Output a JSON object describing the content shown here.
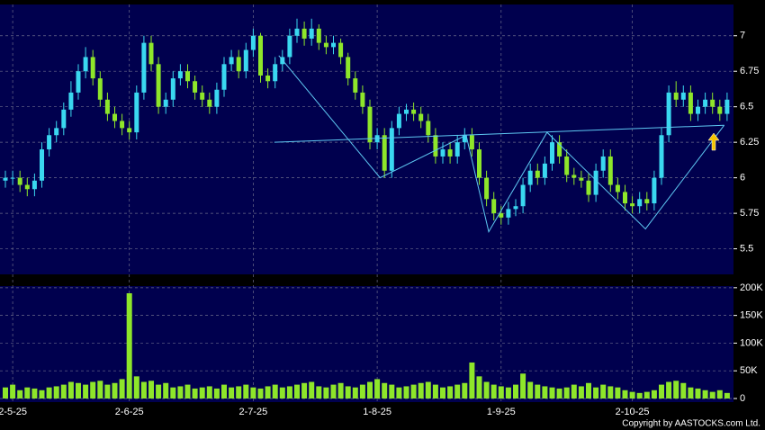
{
  "chart_data": [
    {
      "type": "candlestick",
      "categories": [
        null,
        "2-5-25",
        null,
        null,
        null,
        null,
        null,
        null,
        null,
        null,
        null,
        null,
        null,
        null,
        null,
        null,
        null,
        "2-6-25",
        null,
        null,
        null,
        null,
        null,
        null,
        null,
        null,
        null,
        null,
        null,
        null,
        null,
        null,
        null,
        null,
        "2-7-25",
        null,
        null,
        null,
        null,
        null,
        null,
        null,
        null,
        null,
        null,
        null,
        null,
        null,
        null,
        null,
        null,
        "1-8-25",
        null,
        null,
        null,
        null,
        null,
        null,
        null,
        null,
        null,
        null,
        null,
        null,
        null,
        null,
        null,
        null,
        "1-9-25",
        null,
        null,
        null,
        null,
        null,
        null,
        null,
        null,
        null,
        null,
        null,
        null,
        null,
        null,
        null,
        null,
        null,
        "2-10-25",
        null,
        null,
        null,
        null,
        null,
        null,
        null,
        null,
        null,
        null,
        null,
        null,
        null
      ],
      "open": [
        5.98,
        6.0,
        6.0,
        5.95,
        5.92,
        5.98,
        6.2,
        6.3,
        6.35,
        6.48,
        6.6,
        6.75,
        6.85,
        6.7,
        6.55,
        6.45,
        6.4,
        6.35,
        6.32,
        6.6,
        6.95,
        6.8,
        6.5,
        6.55,
        6.7,
        6.75,
        6.68,
        6.6,
        6.55,
        6.5,
        6.62,
        6.8,
        6.85,
        6.75,
        6.9,
        7.0,
        6.72,
        6.68,
        6.8,
        6.85,
        7.0,
        7.05,
        6.98,
        7.05,
        6.95,
        6.92,
        6.95,
        6.85,
        6.7,
        6.6,
        6.5,
        6.25,
        6.3,
        6.05,
        6.35,
        6.45,
        6.48,
        6.45,
        6.4,
        6.3,
        6.15,
        6.2,
        6.15,
        6.25,
        6.3,
        6.2,
        6.0,
        5.85,
        5.75,
        5.72,
        5.78,
        5.8,
        5.95,
        6.05,
        6.0,
        6.1,
        6.25,
        6.15,
        6.02,
        6.0,
        5.98,
        5.88,
        6.05,
        6.15,
        5.95,
        5.9,
        5.82,
        5.8,
        5.85,
        5.82,
        6.0,
        6.3,
        6.6,
        6.55,
        6.6,
        6.45,
        6.5,
        6.55,
        6.5,
        6.45
      ],
      "high": [
        6.05,
        6.05,
        6.05,
        6.0,
        6.03,
        6.25,
        6.35,
        6.4,
        6.53,
        6.68,
        6.8,
        6.92,
        6.9,
        6.75,
        6.6,
        6.5,
        6.45,
        6.4,
        6.65,
        7.0,
        7.0,
        6.85,
        6.6,
        6.75,
        6.8,
        6.8,
        6.72,
        6.65,
        6.6,
        6.67,
        6.85,
        6.9,
        6.9,
        6.95,
        7.05,
        7.02,
        6.77,
        6.85,
        6.9,
        7.05,
        7.12,
        7.1,
        7.12,
        7.08,
        7.0,
        7.0,
        6.98,
        6.88,
        6.75,
        6.65,
        6.55,
        6.35,
        6.35,
        6.4,
        6.5,
        6.52,
        6.53,
        6.5,
        6.45,
        6.35,
        6.25,
        6.25,
        6.3,
        6.35,
        6.35,
        6.25,
        6.05,
        5.9,
        5.8,
        5.83,
        5.85,
        6.0,
        6.1,
        6.1,
        6.15,
        6.3,
        6.3,
        6.2,
        6.07,
        6.05,
        6.03,
        6.1,
        6.2,
        6.2,
        6.0,
        5.95,
        5.87,
        5.9,
        5.9,
        6.05,
        6.35,
        6.65,
        6.68,
        6.65,
        6.65,
        6.55,
        6.6,
        6.6,
        6.55,
        6.6
      ],
      "low": [
        5.93,
        5.95,
        5.9,
        5.87,
        5.87,
        5.93,
        6.15,
        6.25,
        6.3,
        6.43,
        6.55,
        6.7,
        6.65,
        6.5,
        6.4,
        6.35,
        6.3,
        6.27,
        6.27,
        6.55,
        6.75,
        6.45,
        6.45,
        6.5,
        6.65,
        6.63,
        6.55,
        6.5,
        6.45,
        6.45,
        6.57,
        6.75,
        6.7,
        6.7,
        6.85,
        6.67,
        6.63,
        6.63,
        6.75,
        6.8,
        6.95,
        6.93,
        6.93,
        6.9,
        6.87,
        6.87,
        6.8,
        6.65,
        6.55,
        6.45,
        6.2,
        6.2,
        6.0,
        6.0,
        6.3,
        6.4,
        6.4,
        6.35,
        6.25,
        6.1,
        6.1,
        6.1,
        6.1,
        6.2,
        6.15,
        5.95,
        5.8,
        5.7,
        5.67,
        5.67,
        5.73,
        5.75,
        5.9,
        5.95,
        5.95,
        6.05,
        6.1,
        5.97,
        5.95,
        5.93,
        5.83,
        5.83,
        6.0,
        5.9,
        5.85,
        5.77,
        5.75,
        5.75,
        5.77,
        5.77,
        5.95,
        6.25,
        6.5,
        6.5,
        6.4,
        6.4,
        6.45,
        6.45,
        6.4,
        6.4
      ],
      "close": [
        6.0,
        6.0,
        5.95,
        5.92,
        5.98,
        6.2,
        6.3,
        6.35,
        6.48,
        6.6,
        6.75,
        6.85,
        6.7,
        6.55,
        6.45,
        6.4,
        6.35,
        6.32,
        6.6,
        6.95,
        6.8,
        6.5,
        6.55,
        6.7,
        6.75,
        6.68,
        6.6,
        6.55,
        6.5,
        6.62,
        6.8,
        6.85,
        6.75,
        6.9,
        7.0,
        6.72,
        6.68,
        6.8,
        6.85,
        7.0,
        7.05,
        6.98,
        7.05,
        6.95,
        6.92,
        6.95,
        6.85,
        6.7,
        6.6,
        6.5,
        6.25,
        6.3,
        6.05,
        6.35,
        6.45,
        6.48,
        6.45,
        6.4,
        6.3,
        6.15,
        6.2,
        6.15,
        6.25,
        6.3,
        6.2,
        6.0,
        5.85,
        5.75,
        5.72,
        5.78,
        5.8,
        5.95,
        6.05,
        6.0,
        6.1,
        6.25,
        6.15,
        6.02,
        6.0,
        5.98,
        5.88,
        6.05,
        6.15,
        5.95,
        5.9,
        5.82,
        5.8,
        5.85,
        5.82,
        6.0,
        6.3,
        6.6,
        6.55,
        6.6,
        6.45,
        6.5,
        6.55,
        6.5,
        6.45,
        6.55
      ],
      "up_color": "#3ad8f0",
      "down_color": "#8ee62a",
      "ylim": [
        5.32,
        7.22
      ],
      "yticks": [
        5.5,
        5.75,
        6,
        6.25,
        6.5,
        6.75,
        7
      ],
      "grid": true,
      "pattern_lines": {
        "color": "#5ec8f2",
        "neckline": {
          "x": [
            36.9,
            98.6
          ],
          "y": [
            6.25,
            6.37
          ]
        },
        "zigzag": {
          "x": [
            37.5,
            51.4,
            63.2,
            66.3,
            74.3,
            87.8,
            98.6
          ],
          "y": [
            6.86,
            6.0,
            6.3,
            5.62,
            6.32,
            5.64,
            6.37
          ]
        }
      }
    },
    {
      "type": "bar",
      "values": [
        20000,
        25000,
        15000,
        20000,
        18000,
        15000,
        20000,
        22000,
        25000,
        30000,
        28000,
        25000,
        30000,
        32000,
        25000,
        28000,
        35000,
        190000,
        40000,
        30000,
        32000,
        25000,
        28000,
        20000,
        22000,
        25000,
        18000,
        20000,
        22000,
        18000,
        25000,
        20000,
        22000,
        25000,
        20000,
        18000,
        22000,
        25000,
        20000,
        22000,
        25000,
        28000,
        30000,
        22000,
        20000,
        25000,
        28000,
        22000,
        20000,
        25000,
        30000,
        35000,
        28000,
        25000,
        20000,
        22000,
        25000,
        28000,
        30000,
        25000,
        20000,
        22000,
        25000,
        28000,
        65000,
        40000,
        30000,
        25000,
        22000,
        20000,
        25000,
        45000,
        30000,
        25000,
        22000,
        20000,
        18000,
        20000,
        25000,
        22000,
        28000,
        20000,
        25000,
        22000,
        20000,
        15000,
        12000,
        10000,
        12000,
        15000,
        25000,
        30000,
        32000,
        28000,
        20000,
        18000,
        15000,
        12000,
        15000,
        10000
      ],
      "color": "#8ee62a",
      "ylim": [
        -6500,
        203000
      ],
      "yticks": [
        0,
        {
          "value": 50000,
          "label": "50K"
        },
        {
          "value": 100000,
          "label": "100K"
        },
        {
          "value": 150000,
          "label": "150K"
        },
        {
          "value": 200000,
          "label": "200K"
        }
      ],
      "grid": true
    }
  ],
  "copyright": "Copyright by AASTOCKS.com Ltd."
}
